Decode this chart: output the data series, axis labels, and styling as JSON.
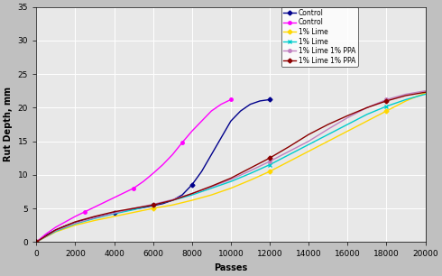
{
  "xlabel": "Passes",
  "ylabel": "Rut Depth, mm",
  "xlim": [
    0,
    20000
  ],
  "ylim": [
    0,
    35
  ],
  "xticks": [
    0,
    2000,
    4000,
    6000,
    8000,
    10000,
    12000,
    14000,
    16000,
    18000,
    20000
  ],
  "yticks": [
    0,
    5,
    10,
    15,
    20,
    25,
    30,
    35
  ],
  "series": [
    {
      "label": "Control",
      "color": "#00008B",
      "marker": "D",
      "markersize": 2.5,
      "linewidth": 1.0,
      "x": [
        0,
        500,
        1000,
        1500,
        2000,
        2500,
        3000,
        3500,
        4000,
        4500,
        5000,
        5500,
        6000,
        6500,
        7000,
        7500,
        8000,
        8500,
        9000,
        9500,
        10000,
        10500,
        11000,
        11500,
        12000
      ],
      "y": [
        0,
        1.0,
        1.8,
        2.4,
        2.9,
        3.3,
        3.7,
        4.0,
        4.3,
        4.6,
        4.9,
        5.1,
        5.4,
        5.7,
        6.2,
        7.0,
        8.5,
        10.5,
        13.0,
        15.5,
        18.0,
        19.5,
        20.5,
        21.0,
        21.2
      ]
    },
    {
      "label": "Control",
      "color": "#FF00FF",
      "marker": "o",
      "markersize": 2.5,
      "linewidth": 1.0,
      "x": [
        0,
        500,
        1000,
        1500,
        2000,
        2500,
        3000,
        3500,
        4000,
        4500,
        5000,
        5500,
        6000,
        6500,
        7000,
        7500,
        8000,
        8500,
        9000,
        9500,
        10000
      ],
      "y": [
        0,
        1.2,
        2.2,
        3.0,
        3.8,
        4.5,
        5.2,
        5.9,
        6.6,
        7.3,
        8.0,
        9.0,
        10.2,
        11.5,
        13.0,
        14.8,
        16.5,
        18.0,
        19.5,
        20.5,
        21.2
      ]
    },
    {
      "label": "1% Lime",
      "color": "#FFD700",
      "marker": "D",
      "markersize": 2.5,
      "linewidth": 1.0,
      "x": [
        0,
        1000,
        2000,
        3000,
        4000,
        5000,
        6000,
        7000,
        8000,
        9000,
        10000,
        11000,
        12000,
        13000,
        14000,
        15000,
        16000,
        17000,
        18000,
        19000,
        20000
      ],
      "y": [
        0,
        1.5,
        2.5,
        3.2,
        3.8,
        4.4,
        5.0,
        5.5,
        6.2,
        7.0,
        8.0,
        9.2,
        10.5,
        12.0,
        13.5,
        15.0,
        16.5,
        18.0,
        19.5,
        21.0,
        22.2
      ]
    },
    {
      "label": "1% Lime",
      "color": "#00CCCC",
      "marker": "x",
      "markersize": 2.5,
      "linewidth": 1.0,
      "x": [
        0,
        1000,
        2000,
        3000,
        4000,
        5000,
        6000,
        7000,
        8000,
        9000,
        10000,
        11000,
        12000,
        13000,
        14000,
        15000,
        16000,
        17000,
        18000,
        19000,
        20000
      ],
      "y": [
        0,
        1.6,
        2.7,
        3.5,
        4.2,
        4.8,
        5.5,
        6.2,
        7.0,
        8.0,
        9.0,
        10.2,
        11.5,
        13.0,
        14.5,
        16.0,
        17.5,
        19.0,
        20.2,
        21.2,
        22.0
      ]
    },
    {
      "label": "1% Lime 1% PPA",
      "color": "#C080C0",
      "marker": "o",
      "markersize": 2.5,
      "linewidth": 1.0,
      "x": [
        0,
        1000,
        2000,
        3000,
        4000,
        5000,
        6000,
        7000,
        8000,
        9000,
        10000,
        11000,
        12000,
        13000,
        14000,
        15000,
        16000,
        17000,
        18000,
        19000,
        20000
      ],
      "y": [
        0,
        1.7,
        2.8,
        3.6,
        4.3,
        5.0,
        5.6,
        6.3,
        7.2,
        8.2,
        9.3,
        10.6,
        12.0,
        13.5,
        15.0,
        16.8,
        18.5,
        20.0,
        21.2,
        22.0,
        22.5
      ]
    },
    {
      "label": "1% Lime 1% PPA",
      "color": "#8B0000",
      "marker": "D",
      "markersize": 2.5,
      "linewidth": 1.0,
      "x": [
        0,
        1000,
        2000,
        3000,
        4000,
        5000,
        6000,
        7000,
        8000,
        9000,
        10000,
        11000,
        12000,
        13000,
        14000,
        15000,
        16000,
        17000,
        18000,
        19000,
        20000
      ],
      "y": [
        0,
        1.8,
        3.0,
        3.8,
        4.5,
        5.0,
        5.5,
        6.2,
        7.2,
        8.3,
        9.5,
        11.0,
        12.5,
        14.2,
        16.0,
        17.5,
        18.8,
        20.0,
        21.0,
        21.8,
        22.3
      ]
    }
  ],
  "background_color": "#C0C0C0",
  "plot_bg_color": "#E8E8E8",
  "figsize": [
    4.9,
    3.06
  ],
  "dpi": 100
}
